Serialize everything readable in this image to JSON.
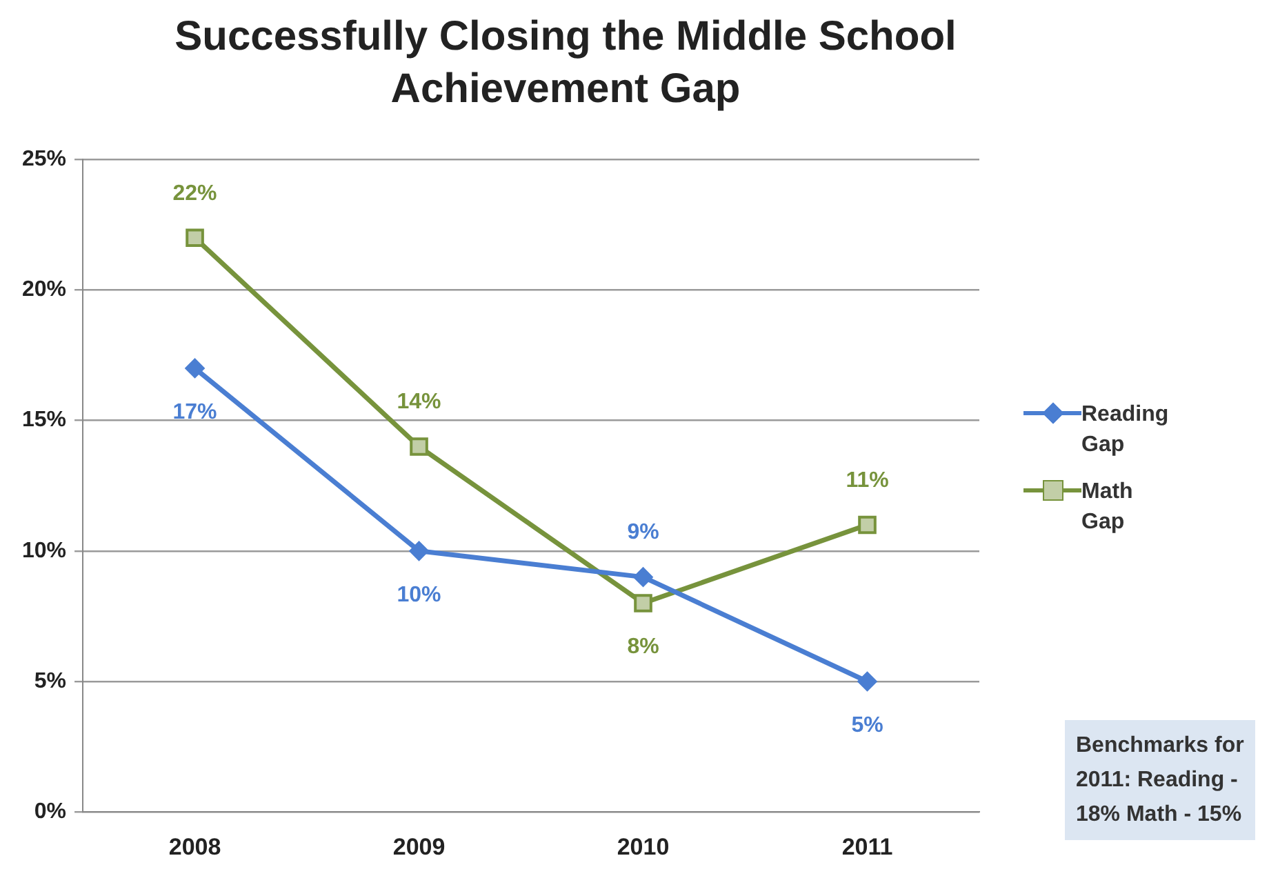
{
  "chart_data": {
    "type": "line",
    "title": "Successfully Closing the Middle School Achievement Gap",
    "categories": [
      "2008",
      "2009",
      "2010",
      "2011"
    ],
    "series": [
      {
        "name": "Reading Gap",
        "color": "#4a7ed2",
        "marker": "diamond",
        "values": [
          17,
          10,
          9,
          5
        ],
        "value_labels": [
          "17%",
          "10%",
          "9%",
          "5%"
        ]
      },
      {
        "name": "Math Gap",
        "color": "#77933c",
        "marker": "square",
        "values": [
          22,
          14,
          8,
          11
        ],
        "value_labels": [
          "22%",
          "14%",
          "8%",
          "11%"
        ]
      }
    ],
    "ylim": [
      0,
      25
    ],
    "yticks": [
      {
        "value": 0,
        "label": "0%"
      },
      {
        "value": 5,
        "label": "5%"
      },
      {
        "value": 10,
        "label": "10%"
      },
      {
        "value": 15,
        "label": "15%"
      },
      {
        "value": 20,
        "label": "20%"
      },
      {
        "value": 25,
        "label": "25%"
      }
    ],
    "grid": "y",
    "legend": "right",
    "annotations": [
      "Benchmarks for 2011: Reading - 18% Math - 15%"
    ]
  }
}
